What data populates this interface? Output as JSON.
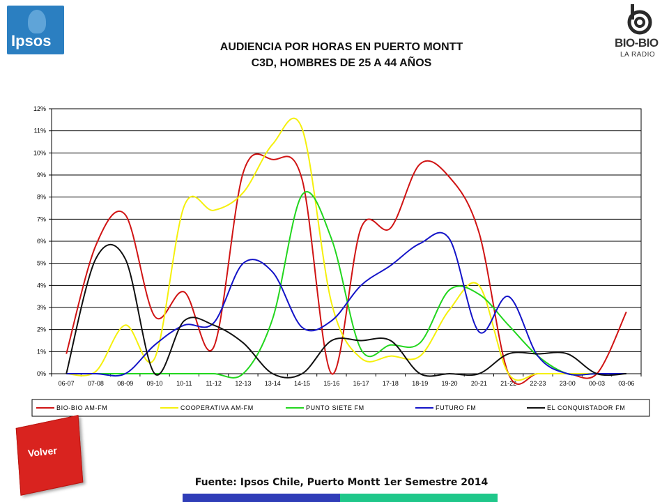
{
  "header": {
    "title_line1": "AUDIENCIA POR HORAS EN PUERTO MONTT",
    "title_line2": "C3D, HOMBRES DE 25 A 44 AÑOS",
    "left_logo_text": "Ipsos",
    "right_logo_text_1": "BIO-BIO",
    "right_logo_text_2": "LA RADIO"
  },
  "footer": {
    "source": "Fuente: Ipsos Chile, Puerto Montt 1er Semestre 2014",
    "back_button": "Volver"
  },
  "chart_data": {
    "type": "line",
    "title": "",
    "xlabel": "",
    "ylabel": "",
    "ylim": [
      0,
      12
    ],
    "y_unit": "%",
    "yticks": [
      "0%",
      "1%",
      "2%",
      "3%",
      "4%",
      "5%",
      "6%",
      "7%",
      "8%",
      "9%",
      "10%",
      "11%",
      "12%"
    ],
    "categories": [
      "06-07",
      "07-08",
      "08-09",
      "09-10",
      "10-11",
      "11-12",
      "12-13",
      "13-14",
      "14-15",
      "15-16",
      "16-17",
      "17-18",
      "18-19",
      "19-20",
      "20-21",
      "21-22",
      "22-23",
      "23-00",
      "00-03",
      "03-06"
    ],
    "grid": true,
    "legend_position": "bottom",
    "series": [
      {
        "name": "BIO-BIO AM-FM",
        "color": "#d01414",
        "values": [
          0.9,
          5.8,
          7.2,
          2.6,
          3.7,
          1.2,
          9.1,
          9.7,
          8.8,
          0.0,
          6.6,
          6.6,
          9.5,
          8.9,
          6.4,
          0.0,
          0.0,
          0.0,
          0.0,
          2.8
        ]
      },
      {
        "name": "COOPERATIVA AM-FM",
        "color": "#f5f00c",
        "values": [
          0.0,
          0.1,
          2.2,
          0.7,
          7.6,
          7.4,
          8.2,
          10.4,
          11.1,
          3.2,
          0.7,
          0.8,
          0.8,
          2.9,
          4.0,
          0.0,
          0.0,
          0.0,
          0.0,
          0.0
        ]
      },
      {
        "name": "PUNTO SIETE FM",
        "color": "#22d61e",
        "values": [
          0.0,
          0.0,
          0.0,
          0.0,
          0.0,
          0.0,
          0.0,
          2.5,
          8.1,
          6.1,
          1.1,
          1.3,
          1.4,
          3.8,
          3.6,
          2.2,
          0.8,
          0.0,
          0.0,
          0.0
        ]
      },
      {
        "name": "FUTURO FM",
        "color": "#1414c8",
        "values": [
          0.0,
          0.0,
          0.0,
          1.3,
          2.2,
          2.3,
          5.0,
          4.6,
          2.1,
          2.4,
          4.0,
          4.9,
          5.9,
          6.1,
          1.9,
          3.5,
          0.8,
          0.0,
          0.0,
          0.0
        ]
      },
      {
        "name": "EL CONQUISTADOR FM",
        "color": "#111111",
        "values": [
          0.0,
          5.2,
          5.2,
          0.0,
          2.4,
          2.2,
          1.4,
          0.0,
          0.0,
          1.5,
          1.5,
          1.5,
          0.0,
          0.0,
          0.0,
          0.9,
          0.9,
          0.9,
          0.0,
          0.0
        ]
      }
    ]
  }
}
